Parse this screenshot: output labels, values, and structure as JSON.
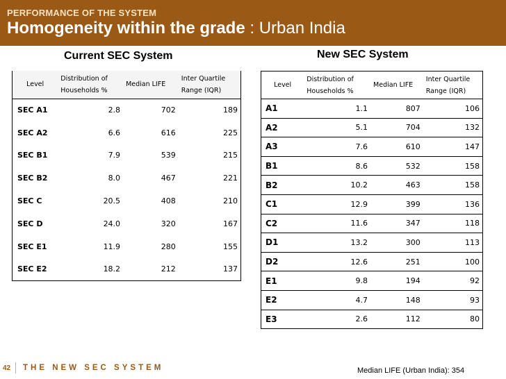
{
  "header": {
    "kicker": "PERFORMANCE OF THE SYSTEM",
    "title_bold": "Homogeneity within the grade",
    "title_rest": " : Urban India"
  },
  "colors": {
    "accent": "#9a5a16"
  },
  "current": {
    "heading": "Current SEC System",
    "headers": {
      "level": "Level",
      "dist_line1": "Distribution of",
      "dist_line2": "Households %",
      "median": "Median LIFE",
      "iqr_line1": "Inter Quartile",
      "iqr_line2": "Range (IQR)"
    },
    "rows": [
      {
        "level": "SEC A1",
        "dist": "2.8",
        "median": "702",
        "iqr": "189"
      },
      {
        "level": "SEC A2",
        "dist": "6.6",
        "median": "616",
        "iqr": "225"
      },
      {
        "level": "SEC B1",
        "dist": "7.9",
        "median": "539",
        "iqr": "215"
      },
      {
        "level": "SEC B2",
        "dist": "8.0",
        "median": "467",
        "iqr": "221"
      },
      {
        "level": "SEC C",
        "dist": "20.5",
        "median": "408",
        "iqr": "210"
      },
      {
        "level": "SEC D",
        "dist": "24.0",
        "median": "320",
        "iqr": "167"
      },
      {
        "level": "SEC E1",
        "dist": "11.9",
        "median": "280",
        "iqr": "155"
      },
      {
        "level": "SEC E2",
        "dist": "18.2",
        "median": "212",
        "iqr": "137"
      }
    ]
  },
  "newsys": {
    "heading": "New SEC System",
    "headers": {
      "level": "Level",
      "dist_line1": "Distribution of",
      "dist_line2": "Households %",
      "median": "Median LIFE",
      "iqr_line1": "Inter Quartile",
      "iqr_line2": "Range (IQR)"
    },
    "rows": [
      {
        "level": "A1",
        "dist": "1.1",
        "median": "807",
        "iqr": "106"
      },
      {
        "level": "A2",
        "dist": "5.1",
        "median": "704",
        "iqr": "132"
      },
      {
        "level": "A3",
        "dist": "7.6",
        "median": "610",
        "iqr": "147"
      },
      {
        "level": "B1",
        "dist": "8.6",
        "median": "532",
        "iqr": "158"
      },
      {
        "level": "B2",
        "dist": "10.2",
        "median": "463",
        "iqr": "158"
      },
      {
        "level": "C1",
        "dist": "12.9",
        "median": "399",
        "iqr": "136"
      },
      {
        "level": "C2",
        "dist": "11.6",
        "median": "347",
        "iqr": "118"
      },
      {
        "level": "D1",
        "dist": "13.2",
        "median": "300",
        "iqr": "113"
      },
      {
        "level": "D2",
        "dist": "12.6",
        "median": "251",
        "iqr": "100"
      },
      {
        "level": "E1",
        "dist": "9.8",
        "median": "194",
        "iqr": "92"
      },
      {
        "level": "E2",
        "dist": "4.7",
        "median": "148",
        "iqr": "93"
      },
      {
        "level": "E3",
        "dist": "2.6",
        "median": "112",
        "iqr": "80"
      }
    ]
  },
  "footer": {
    "page_number": "42",
    "brand": "THE NEW SEC SYSTEM",
    "note": "Median LIFE (Urban India): 354"
  }
}
